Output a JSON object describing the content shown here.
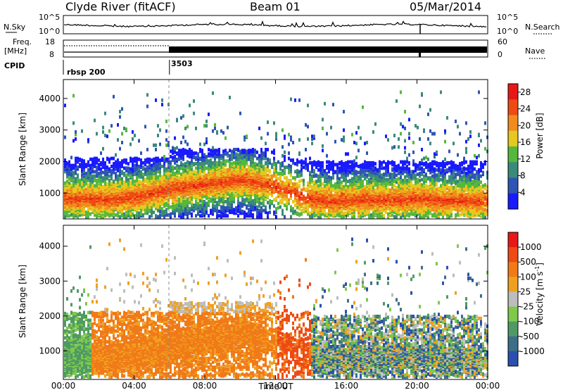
{
  "header": {
    "station": "Clyde River (fitACF)",
    "beam": "Beam 01",
    "date": "05/Mar/2014"
  },
  "top_panels": {
    "nsky_label": "N.Sky",
    "nsearch_label": "N.Search",
    "freq_label_1": "Freq.",
    "freq_label_2": "[MHz]",
    "nave_label": "Nave",
    "cpid_label": "CPID",
    "noise_left_ticks": [
      "10^5",
      "10^0"
    ],
    "noise_right_ticks": [
      "10^5",
      "10^0"
    ],
    "freq_left_ticks": [
      "18",
      "8"
    ],
    "freq_right_ticks": [
      "60",
      "0"
    ],
    "cpid_segments": [
      {
        "label": "rbsp 200",
        "start_hour": 0
      },
      {
        "label": "3503",
        "start_hour": 6
      }
    ]
  },
  "chart_data": [
    {
      "type": "heatmap",
      "title": "",
      "xlabel": "Time UT",
      "ylabel": "Slant Range [km]",
      "x_ticks": [
        "00:00",
        "04:00",
        "08:00",
        "12:00",
        "16:00",
        "20:00",
        "00:00"
      ],
      "x_range_hours": [
        0,
        24
      ],
      "y_ticks": [
        "1000",
        "2000",
        "3000",
        "4000"
      ],
      "ylim": [
        180,
        4600
      ],
      "colorbar": {
        "label": "Power [dB]",
        "ticks": [
          "4",
          "8",
          "12",
          "16",
          "20",
          "24",
          "28"
        ],
        "range": [
          0,
          30
        ],
        "colors": [
          "#1a1aff",
          "#2d55b4",
          "#3a8a7a",
          "#55b83c",
          "#e6c81e",
          "#f08c1e",
          "#ee4a14",
          "#e81818"
        ]
      }
    },
    {
      "type": "heatmap",
      "title": "",
      "xlabel": "Time UT",
      "ylabel": "Slant Range [km]",
      "x_ticks": [
        "00:00",
        "04:00",
        "08:00",
        "12:00",
        "16:00",
        "20:00",
        "00:00"
      ],
      "x_range_hours": [
        0,
        24
      ],
      "y_ticks": [
        "1000",
        "2000",
        "3000",
        "4000"
      ],
      "ylim": [
        180,
        4600
      ],
      "colorbar": {
        "label": "Velocity [m s^-1]",
        "ticks": [
          "1000",
          "500",
          "100",
          "25",
          "-25",
          "-100",
          "-500",
          "-1000"
        ],
        "colors": [
          "#2a4fb0",
          "#3c6e8a",
          "#4f9a64",
          "#7fc84a",
          "#bdbdbd",
          "#f0a020",
          "#f07a18",
          "#ee4a14",
          "#e81818"
        ]
      }
    }
  ],
  "xaxis_title": "Time UT"
}
